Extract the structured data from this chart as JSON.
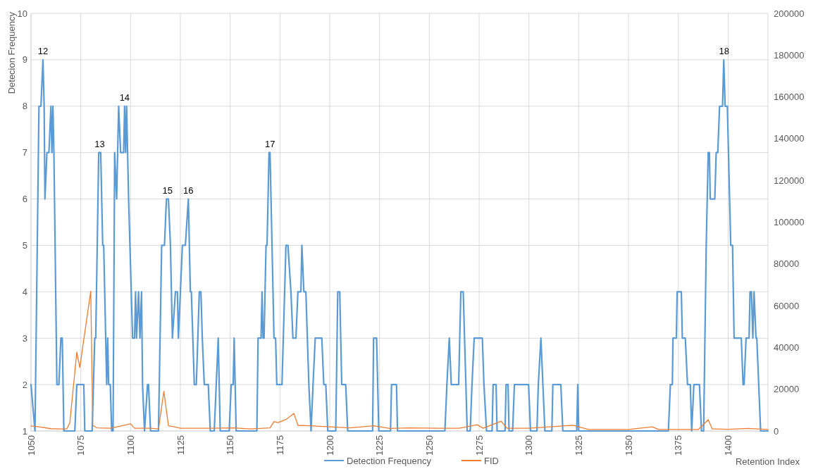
{
  "chart_data": {
    "type": "line",
    "ylabel": "Detecion Frequency",
    "xlabel": "Retention Index",
    "xlim": [
      1050,
      1420
    ],
    "xticks": [
      1050,
      1075,
      1100,
      1125,
      1150,
      1175,
      1200,
      1225,
      1250,
      1275,
      1300,
      1325,
      1350,
      1375,
      1400
    ],
    "ylim": [
      1,
      10
    ],
    "yticks": [
      1,
      2,
      3,
      4,
      5,
      6,
      7,
      8,
      9,
      10
    ],
    "y2lim": [
      0,
      200000
    ],
    "y2ticks": [
      0,
      20000,
      40000,
      60000,
      80000,
      100000,
      120000,
      140000,
      160000,
      180000,
      200000
    ],
    "grid": true,
    "legend": "bottom",
    "marker": "none",
    "line_style": "solid",
    "series": [
      {
        "name": "Detection Frequency",
        "color": "#5b9bd5",
        "x": [
          1050,
          1052,
          1054,
          1055,
          1056,
          1056.6,
          1057,
          1058,
          1059,
          1060,
          1060.5,
          1061,
          1061.5,
          1063,
          1064,
          1065,
          1065.7,
          1066.5,
          1072,
          1073,
          1076.5,
          1077,
          1080.7,
          1082,
          1082.5,
          1084,
          1085,
          1086,
          1086.5,
          1087,
          1088,
          1088.5,
          1089,
          1089.8,
          1090.5,
          1091.2,
          1092,
          1093,
          1093.5,
          1094,
          1095,
          1096.5,
          1097,
          1097.5,
          1098,
          1099,
          1101,
          1102,
          1102.5,
          1103,
          1104,
          1104.7,
          1105.5,
          1106,
          1107,
          1108.5,
          1109,
          1110,
          1114,
          1115.6,
          1117,
          1118,
          1119,
          1120,
          1121,
          1122.5,
          1123.5,
          1124,
          1125,
          1126,
          1127.5,
          1129,
          1130,
          1130.5,
          1132,
          1133,
          1134.5,
          1135.3,
          1136,
          1137,
          1139,
          1140,
          1142,
          1143,
          1144,
          1145,
          1149.5,
          1150.5,
          1151.5,
          1152,
          1153,
          1163.4,
          1164,
          1165.5,
          1166,
          1166.5,
          1167,
          1168,
          1168.5,
          1169.5,
          1170,
          1172,
          1172.8,
          1173.4,
          1176,
          1178,
          1179,
          1180.5,
          1181.5,
          1183,
          1184,
          1185.5,
          1186,
          1187,
          1188,
          1189.5,
          1190.6,
          1191.6,
          1192.7,
          1196,
          1197,
          1198,
          1199,
          1203,
          1204,
          1205,
          1206,
          1208,
          1209,
          1221.5,
          1222,
          1223.5,
          1224.6,
          1230.5,
          1231,
          1233.5,
          1234,
          1257.8,
          1258.8,
          1260,
          1261,
          1264.7,
          1265.8,
          1267,
          1269,
          1270.5,
          1271.4,
          1272.5,
          1276.6,
          1277.4,
          1278.7,
          1281.5,
          1282,
          1283.5,
          1284,
          1288,
          1288.5,
          1289.5,
          1290,
          1291.8,
          1292.7,
          1299.8,
          1300.8,
          1304,
          1304.7,
          1306,
          1307,
          1308,
          1311.5,
          1312,
          1316,
          1317,
          1324,
          1324.5,
          1325,
          1370,
          1371,
          1372,
          1372.3,
          1374,
          1374.4,
          1376.5,
          1377,
          1378.5,
          1379.6,
          1381,
          1381.7,
          1382.8,
          1385.6,
          1386.6,
          1387.7,
          1389,
          1390,
          1390.6,
          1391,
          1393.3,
          1394,
          1394.8,
          1395.7,
          1397.2,
          1397.8,
          1398.5,
          1399.6,
          1401.3,
          1402.2,
          1403,
          1406.6,
          1407.5,
          1408,
          1409,
          1410.5,
          1411,
          1411.7,
          1412.4,
          1413,
          1414,
          1414.4,
          1416.3,
          1420
        ],
        "values": [
          2,
          1,
          8,
          8,
          9,
          8,
          6,
          7,
          7,
          8,
          7,
          8,
          7,
          2,
          2,
          3,
          3,
          1,
          1,
          2,
          2,
          1,
          1,
          3,
          3,
          7,
          7,
          5,
          5,
          4,
          2,
          3,
          2,
          2,
          1,
          1,
          7,
          6,
          7,
          8,
          7,
          7,
          8,
          7,
          8,
          6,
          3,
          3,
          4,
          3,
          4,
          3,
          4,
          2,
          1,
          2,
          2,
          1,
          1,
          5,
          5,
          6,
          6,
          5,
          3,
          4,
          4,
          3,
          4,
          5,
          5,
          6,
          4,
          4,
          2,
          2,
          4,
          4,
          3,
          2,
          2,
          1,
          1,
          2,
          3,
          1,
          1,
          2,
          2,
          3,
          1,
          1,
          3,
          3,
          4,
          3,
          3,
          5,
          5,
          7,
          7,
          3,
          3,
          2,
          2,
          5,
          5,
          4,
          3,
          3,
          4,
          4,
          5,
          4,
          4,
          2,
          1,
          2,
          3,
          3,
          2,
          2,
          1,
          1,
          4,
          4,
          2,
          2,
          1,
          1,
          3,
          3,
          1,
          1,
          2,
          2,
          1,
          1,
          2,
          3,
          2,
          2,
          4,
          4,
          1,
          1,
          2,
          3,
          3,
          2,
          1,
          1,
          2,
          2,
          1,
          1,
          2,
          2,
          1,
          1,
          2,
          2,
          1,
          1,
          2,
          3,
          2,
          1,
          1,
          2,
          2,
          1,
          1,
          2,
          1,
          1,
          2,
          2,
          3,
          3,
          4,
          4,
          3,
          3,
          2,
          2,
          1,
          2,
          2,
          1,
          1,
          5,
          7,
          7,
          6,
          6,
          7,
          7,
          8,
          8,
          9,
          8,
          8,
          5,
          5,
          3,
          3,
          2,
          2,
          3,
          3,
          4,
          4,
          3,
          4,
          3,
          3,
          1,
          1
        ]
      },
      {
        "name": "FID",
        "color": "#ed7d31",
        "axis": "y2",
        "x": [
          1050,
          1054,
          1060,
          1065,
          1068,
          1069.5,
          1073,
          1074.5,
          1080,
          1081,
          1083,
          1090,
          1100,
          1102,
          1110,
          1114,
          1116.7,
          1119,
          1122,
          1125,
          1140,
          1152,
          1160,
          1170,
          1172,
          1174,
          1178,
          1182,
          1184,
          1190,
          1200,
          1210,
          1222,
          1230,
          1240,
          1255,
          1265,
          1274,
          1277,
          1286,
          1289,
          1300,
          1318,
          1322,
          1330,
          1350,
          1362,
          1365,
          1385,
          1390,
          1392,
          1400,
          1410,
          1420
        ],
        "values": [
          2400,
          2000,
          1100,
          1000,
          1000,
          4000,
          37800,
          30400,
          67000,
          2700,
          1500,
          1300,
          3400,
          1300,
          1300,
          1000,
          19000,
          2500,
          2000,
          1300,
          1300,
          1500,
          1000,
          1500,
          4500,
          4000,
          5500,
          8400,
          2700,
          2500,
          2000,
          1500,
          2500,
          1200,
          1500,
          1300,
          1300,
          3000,
          1300,
          4700,
          1300,
          1300,
          2500,
          2700,
          700,
          700,
          2000,
          700,
          700,
          5400,
          1000,
          800,
          1200,
          700
        ]
      }
    ],
    "annotations": [
      {
        "text": "12",
        "x": 1056,
        "y": 9
      },
      {
        "text": "13",
        "x": 1084.5,
        "y": 7
      },
      {
        "text": "14",
        "x": 1097,
        "y": 8
      },
      {
        "text": "15",
        "x": 1118.5,
        "y": 6
      },
      {
        "text": "16",
        "x": 1129,
        "y": 6
      },
      {
        "text": "17",
        "x": 1170,
        "y": 7
      },
      {
        "text": "18",
        "x": 1398,
        "y": 9
      }
    ]
  }
}
